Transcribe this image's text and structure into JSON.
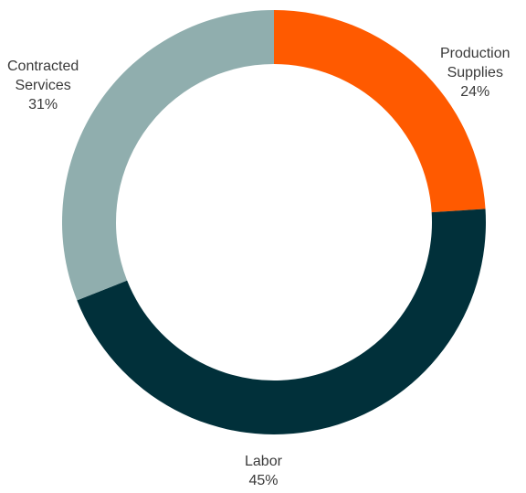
{
  "chart_data": {
    "type": "pie",
    "title": "",
    "donut": true,
    "slices": [
      {
        "label": "Production Supplies",
        "label_lines": [
          "Production",
          "Supplies"
        ],
        "value": 24,
        "display": "24%",
        "color": "#ff5a00"
      },
      {
        "label": "Labor",
        "label_lines": [
          "Labor"
        ],
        "value": 45,
        "display": "45%",
        "color": "#01303a"
      },
      {
        "label": "Contracted Services",
        "label_lines": [
          "Contracted",
          "Services"
        ],
        "value": 31,
        "display": "31%",
        "color": "#90aeae"
      }
    ]
  }
}
